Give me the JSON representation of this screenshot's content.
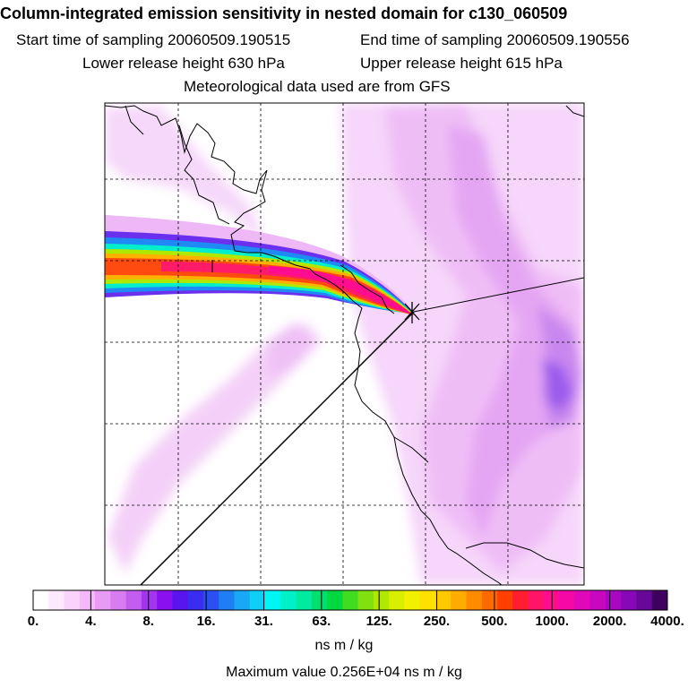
{
  "header": {
    "title": "Column-integrated emission sensitivity in nested domain for c130_060509",
    "start_label": "Start time of sampling 20060509.190515",
    "end_label": "End time of sampling 20060509.190556",
    "lower_label": "Lower release height  630 hPa",
    "upper_label": "Upper release height  615 hPa",
    "met_label": "Meteorological data used are from GFS"
  },
  "colorbar": {
    "tick_labels": [
      "0.",
      "4.",
      "8.",
      "16.",
      "31.",
      "63.",
      "125.",
      "250.",
      "500.",
      "1000.",
      "2000.",
      "4000."
    ],
    "colors": [
      "#ffffff",
      "#fde8fd",
      "#fad2fb",
      "#f5b8f8",
      "#e99af5",
      "#d77cf1",
      "#c15ef0",
      "#a236ee",
      "#8a10ef",
      "#5a14ee",
      "#3a2cf0",
      "#2a50f2",
      "#1f7ef4",
      "#18a8f6",
      "#10cff7",
      "#00f5f5",
      "#00f0c8",
      "#00eaa0",
      "#00e070",
      "#00d840",
      "#40dc20",
      "#80e010",
      "#b0e800",
      "#d8f000",
      "#f0f000",
      "#ffe000",
      "#ffc800",
      "#ffac00",
      "#ff8c00",
      "#ff6a00",
      "#ff4000",
      "#ff1e30",
      "#ff1468",
      "#ff0c90",
      "#f408a8",
      "#e008b8",
      "#c808c0",
      "#a808c0",
      "#8808b8",
      "#680898",
      "#400060"
    ],
    "unit": "ns m / kg",
    "max_value": "Maximum value  0.256E+04 ns m / kg"
  }
}
